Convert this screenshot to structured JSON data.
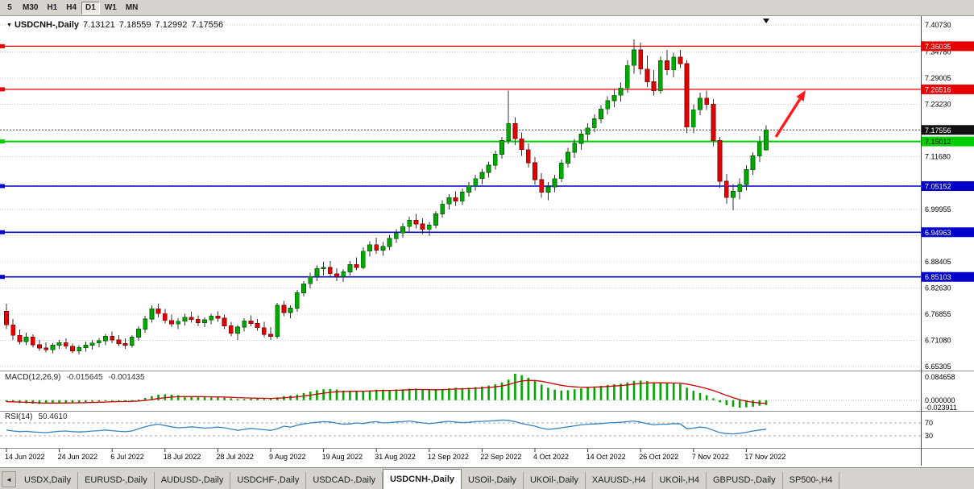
{
  "toolbar": {
    "periods": [
      "5",
      "M30",
      "H1",
      "H4",
      "D1",
      "W1",
      "MN"
    ],
    "active_period": "D1"
  },
  "tabbar": {
    "scroll_icon": "◄",
    "active_tab": "USDCNH-,Daily",
    "tabs": [
      "USDX,Daily",
      "EURUSD-,Daily",
      "AUDUSD-,Daily",
      "USDCHF-,Daily",
      "USDCAD-,Daily",
      "USDCNH-,Daily",
      "USOil-,Daily",
      "UKOil-,Daily",
      "XAUUSD-,H4",
      "UKOil-,H4",
      "GBPUSD-,Daily",
      "SP500-,H4"
    ]
  },
  "chart_data": [
    {
      "type": "candlestick",
      "symbol": "USDCNH-,Daily",
      "marker_icon": "▼",
      "ohlc": {
        "open": "7.13121",
        "high": "7.18559",
        "low": "7.12992",
        "close": "7.17556"
      },
      "ylim": [
        6.65305,
        7.4073
      ],
      "up_color": "#00A800",
      "down_color": "#E30000",
      "wick_color": "#333333",
      "grid_values": [
        7.4073,
        7.3478,
        7.29005,
        7.2323,
        7.17455,
        7.1168,
        7.05905,
        6.99955,
        6.9418,
        6.88405,
        6.8263,
        6.76855,
        6.7108,
        6.65305
      ],
      "tick_labels": [
        {
          "v": 7.4073,
          "t": "7.40730"
        },
        {
          "v": 7.3478,
          "t": "7.34780"
        },
        {
          "v": 7.29005,
          "t": "7.29005"
        },
        {
          "v": 7.2323,
          "t": "7.23230"
        },
        {
          "v": 7.1168,
          "t": "7.11680"
        },
        {
          "v": 6.99955,
          "t": "6.99955"
        },
        {
          "v": 6.88405,
          "t": "6.88405"
        },
        {
          "v": 6.8263,
          "t": "6.82630"
        },
        {
          "v": 6.76855,
          "t": "6.76855"
        },
        {
          "v": 6.7108,
          "t": "6.71080"
        },
        {
          "v": 6.65305,
          "t": "6.65305"
        }
      ],
      "hlines": [
        {
          "v": 7.36035,
          "t": "7.36035",
          "c": "#E60000",
          "w": 1.2,
          "txt": "#ffffff"
        },
        {
          "v": 7.26516,
          "t": "7.26516",
          "c": "#E60000",
          "w": 1.2,
          "txt": "#ffffff"
        },
        {
          "v": 7.15012,
          "t": "7.15012",
          "c": "#00CE00",
          "w": 2,
          "txt": "#000000"
        },
        {
          "v": 7.05152,
          "t": "7.05152",
          "c": "#0000C8",
          "w": 1.6,
          "txt": "#ffffff"
        },
        {
          "v": 6.94963,
          "t": "6.94963",
          "c": "#0000C8",
          "w": 1.6,
          "txt": "#ffffff"
        },
        {
          "v": 6.85103,
          "t": "6.85103",
          "c": "#0000C8",
          "w": 1.6,
          "txt": "#ffffff"
        }
      ],
      "current_price": {
        "v": 7.17556,
        "t": "7.17556",
        "bg": "#111111",
        "txt": "#ffffff"
      },
      "arrow": {
        "x1": 963,
        "y1": 170,
        "x2": 1000,
        "y2": 112,
        "color": "#FF1A1A"
      },
      "x_labels": [
        {
          "i": 0,
          "t": "14 Jun 2022"
        },
        {
          "i": 8,
          "t": "24 Jun 2022"
        },
        {
          "i": 16,
          "t": "6 Jul 2022"
        },
        {
          "i": 24,
          "t": "18 Jul 2022"
        },
        {
          "i": 32,
          "t": "28 Jul 2022"
        },
        {
          "i": 40,
          "t": "9 Aug 2022"
        },
        {
          "i": 48,
          "t": "19 Aug 2022"
        },
        {
          "i": 56,
          "t": "31 Aug 2022"
        },
        {
          "i": 64,
          "t": "12 Sep 2022"
        },
        {
          "i": 72,
          "t": "22 Sep 2022"
        },
        {
          "i": 80,
          "t": "4 Oct 2022"
        },
        {
          "i": 88,
          "t": "14 Oct 2022"
        },
        {
          "i": 96,
          "t": "26 Oct 2022"
        },
        {
          "i": 104,
          "t": "7 Nov 2022"
        },
        {
          "i": 112,
          "t": "17 Nov 2022"
        }
      ],
      "candles": [
        [
          6.775,
          6.792,
          6.736,
          6.745
        ],
        [
          6.745,
          6.758,
          6.712,
          6.722
        ],
        [
          6.722,
          6.735,
          6.702,
          6.708
        ],
        [
          6.708,
          6.728,
          6.7,
          6.718
        ],
        [
          6.718,
          6.724,
          6.695,
          6.701
        ],
        [
          6.701,
          6.712,
          6.688,
          6.694
        ],
        [
          6.694,
          6.706,
          6.684,
          6.69
        ],
        [
          6.69,
          6.705,
          6.682,
          6.7
        ],
        [
          6.7,
          6.712,
          6.692,
          6.706
        ],
        [
          6.706,
          6.715,
          6.692,
          6.698
        ],
        [
          6.698,
          6.704,
          6.682,
          6.688
        ],
        [
          6.688,
          6.7,
          6.68,
          6.695
        ],
        [
          6.695,
          6.708,
          6.686,
          6.7
        ],
        [
          6.7,
          6.712,
          6.69,
          6.705
        ],
        [
          6.705,
          6.716,
          6.696,
          6.71
        ],
        [
          6.71,
          6.725,
          6.7,
          6.72
        ],
        [
          6.72,
          6.73,
          6.705,
          6.712
        ],
        [
          6.712,
          6.722,
          6.698,
          6.704
        ],
        [
          6.704,
          6.715,
          6.692,
          6.7
        ],
        [
          6.7,
          6.722,
          6.695,
          6.718
        ],
        [
          6.718,
          6.742,
          6.71,
          6.736
        ],
        [
          6.736,
          6.765,
          6.728,
          6.758
        ],
        [
          6.758,
          6.788,
          6.75,
          6.78
        ],
        [
          6.78,
          6.792,
          6.762,
          6.77
        ],
        [
          6.77,
          6.78,
          6.748,
          6.755
        ],
        [
          6.755,
          6.768,
          6.74,
          6.747
        ],
        [
          6.747,
          6.76,
          6.736,
          6.753
        ],
        [
          6.753,
          6.77,
          6.744,
          6.762
        ],
        [
          6.762,
          6.774,
          6.75,
          6.757
        ],
        [
          6.757,
          6.766,
          6.742,
          6.75
        ],
        [
          6.75,
          6.762,
          6.74,
          6.756
        ],
        [
          6.756,
          6.77,
          6.746,
          6.764
        ],
        [
          6.764,
          6.775,
          6.752,
          6.76
        ],
        [
          6.76,
          6.768,
          6.736,
          6.743
        ],
        [
          6.743,
          6.752,
          6.72,
          6.727
        ],
        [
          6.727,
          6.745,
          6.712,
          6.74
        ],
        [
          6.74,
          6.76,
          6.73,
          6.754
        ],
        [
          6.754,
          6.766,
          6.742,
          6.748
        ],
        [
          6.748,
          6.758,
          6.732,
          6.739
        ],
        [
          6.739,
          6.752,
          6.718,
          6.724
        ],
        [
          6.724,
          6.74,
          6.712,
          6.72
        ],
        [
          6.72,
          6.794,
          6.714,
          6.788
        ],
        [
          6.788,
          6.798,
          6.764,
          6.772
        ],
        [
          6.772,
          6.788,
          6.76,
          6.782
        ],
        [
          6.782,
          6.822,
          6.774,
          6.816
        ],
        [
          6.816,
          6.842,
          6.808,
          6.836
        ],
        [
          6.836,
          6.86,
          6.826,
          6.852
        ],
        [
          6.852,
          6.876,
          6.842,
          6.869
        ],
        [
          6.869,
          6.884,
          6.854,
          6.872
        ],
        [
          6.872,
          6.886,
          6.85,
          6.858
        ],
        [
          6.858,
          6.87,
          6.842,
          6.852
        ],
        [
          6.852,
          6.868,
          6.84,
          6.862
        ],
        [
          6.862,
          6.886,
          6.854,
          6.878
        ],
        [
          6.878,
          6.894,
          6.866,
          6.872
        ],
        [
          6.872,
          6.916,
          6.868,
          6.908
        ],
        [
          6.908,
          6.93,
          6.896,
          6.922
        ],
        [
          6.922,
          6.938,
          6.902,
          6.91
        ],
        [
          6.91,
          6.928,
          6.898,
          6.918
        ],
        [
          6.918,
          6.944,
          6.91,
          6.936
        ],
        [
          6.936,
          6.956,
          6.926,
          6.948
        ],
        [
          6.948,
          6.97,
          6.938,
          6.962
        ],
        [
          6.962,
          6.984,
          6.95,
          6.976
        ],
        [
          6.976,
          6.99,
          6.958,
          6.968
        ],
        [
          6.968,
          6.98,
          6.946,
          6.956
        ],
        [
          6.956,
          6.972,
          6.942,
          6.965
        ],
        [
          6.965,
          6.996,
          6.958,
          6.99
        ],
        [
          6.99,
          7.02,
          6.982,
          7.012
        ],
        [
          7.012,
          7.034,
          7.0,
          7.026
        ],
        [
          7.026,
          7.04,
          7.008,
          7.018
        ],
        [
          7.018,
          7.046,
          7.01,
          7.038
        ],
        [
          7.038,
          7.06,
          7.028,
          7.052
        ],
        [
          7.052,
          7.076,
          7.042,
          7.068
        ],
        [
          7.068,
          7.09,
          7.056,
          7.082
        ],
        [
          7.082,
          7.106,
          7.07,
          7.098
        ],
        [
          7.098,
          7.13,
          7.088,
          7.122
        ],
        [
          7.122,
          7.16,
          7.112,
          7.152
        ],
        [
          7.152,
          7.262,
          7.144,
          7.19
        ],
        [
          7.19,
          7.204,
          7.142,
          7.156
        ],
        [
          7.156,
          7.17,
          7.118,
          7.132
        ],
        [
          7.132,
          7.146,
          7.092,
          7.103
        ],
        [
          7.103,
          7.116,
          7.055,
          7.066
        ],
        [
          7.066,
          7.08,
          7.026,
          7.038
        ],
        [
          7.038,
          7.06,
          7.02,
          7.05
        ],
        [
          7.05,
          7.076,
          7.038,
          7.068
        ],
        [
          7.068,
          7.11,
          7.06,
          7.102
        ],
        [
          7.102,
          7.136,
          7.092,
          7.126
        ],
        [
          7.126,
          7.156,
          7.114,
          7.146
        ],
        [
          7.146,
          7.176,
          7.132,
          7.166
        ],
        [
          7.166,
          7.19,
          7.15,
          7.18
        ],
        [
          7.18,
          7.21,
          7.17,
          7.2
        ],
        [
          7.2,
          7.23,
          7.19,
          7.222
        ],
        [
          7.222,
          7.25,
          7.21,
          7.24
        ],
        [
          7.24,
          7.266,
          7.226,
          7.252
        ],
        [
          7.252,
          7.28,
          7.238,
          7.268
        ],
        [
          7.268,
          7.33,
          7.258,
          7.318
        ],
        [
          7.318,
          7.375,
          7.3,
          7.352
        ],
        [
          7.352,
          7.368,
          7.298,
          7.31
        ],
        [
          7.31,
          7.34,
          7.27,
          7.282
        ],
        [
          7.282,
          7.308,
          7.252,
          7.262
        ],
        [
          7.262,
          7.338,
          7.255,
          7.328
        ],
        [
          7.328,
          7.352,
          7.296,
          7.308
        ],
        [
          7.308,
          7.346,
          7.292,
          7.336
        ],
        [
          7.336,
          7.352,
          7.312,
          7.322
        ],
        [
          7.322,
          7.33,
          7.168,
          7.182
        ],
        [
          7.182,
          7.232,
          7.168,
          7.22
        ],
        [
          7.22,
          7.258,
          7.208,
          7.246
        ],
        [
          7.246,
          7.262,
          7.22,
          7.232
        ],
        [
          7.232,
          7.244,
          7.14,
          7.152
        ],
        [
          7.152,
          7.16,
          7.048,
          7.062
        ],
        [
          7.062,
          7.078,
          7.012,
          7.026
        ],
        [
          7.026,
          7.056,
          6.998,
          7.04
        ],
        [
          7.04,
          7.068,
          7.022,
          7.055
        ],
        [
          7.055,
          7.098,
          7.042,
          7.088
        ],
        [
          7.088,
          7.126,
          7.076,
          7.118
        ],
        [
          7.118,
          7.162,
          7.105,
          7.148
        ],
        [
          7.13121,
          7.18559,
          7.12992,
          7.17556
        ]
      ]
    },
    {
      "type": "bar",
      "name": "MACD(12,26,9)",
      "value1": "-0.015645",
      "value2": "-0.001435",
      "bar_color": "#00A800",
      "signal_color": "#CC0000",
      "signal_period": 9,
      "ylim": [
        -0.0239,
        0.0847
      ],
      "ticks": [
        {
          "v": 0.084658,
          "t": "0.084658"
        },
        {
          "v": 0.0,
          "t": "0.000000"
        },
        {
          "v": -0.023911,
          "t": "-0.023911"
        }
      ],
      "values": [
        -0.005,
        -0.007,
        -0.009,
        -0.01,
        -0.011,
        -0.012,
        -0.011,
        -0.01,
        -0.009,
        -0.008,
        -0.008,
        -0.007,
        -0.006,
        -0.005,
        -0.004,
        -0.003,
        -0.002,
        -0.002,
        -0.003,
        -0.002,
        0.002,
        0.007,
        0.013,
        0.018,
        0.019,
        0.018,
        0.016,
        0.013,
        0.012,
        0.011,
        0.01,
        0.009,
        0.009,
        0.008,
        0.006,
        0.004,
        0.004,
        0.005,
        0.005,
        0.004,
        0.004,
        0.009,
        0.013,
        0.015,
        0.018,
        0.023,
        0.028,
        0.032,
        0.035,
        0.036,
        0.034,
        0.031,
        0.03,
        0.03,
        0.03,
        0.032,
        0.034,
        0.034,
        0.033,
        0.034,
        0.035,
        0.037,
        0.037,
        0.035,
        0.032,
        0.032,
        0.035,
        0.038,
        0.04,
        0.039,
        0.04,
        0.042,
        0.044,
        0.047,
        0.051,
        0.057,
        0.066,
        0.0847,
        0.08,
        0.072,
        0.062,
        0.05,
        0.04,
        0.034,
        0.031,
        0.032,
        0.035,
        0.038,
        0.041,
        0.044,
        0.046,
        0.049,
        0.051,
        0.053,
        0.057,
        0.062,
        0.063,
        0.061,
        0.057,
        0.056,
        0.055,
        0.054,
        0.052,
        0.04,
        0.03,
        0.023,
        0.016,
        0.006,
        -0.007,
        -0.016,
        -0.021,
        -0.0239,
        -0.023,
        -0.021,
        -0.018,
        -0.015645
      ]
    },
    {
      "type": "line",
      "name": "RSI(14)",
      "value": "50.4610",
      "line_color": "#3585C2",
      "ylim": [
        0,
        100
      ],
      "levels": [
        {
          "v": 70,
          "t": "70"
        },
        {
          "v": 30,
          "t": "30"
        }
      ],
      "values": [
        48,
        45,
        43,
        44,
        42,
        41,
        40,
        42,
        44,
        45,
        43,
        42,
        43,
        45,
        46,
        48,
        46,
        44,
        43,
        45,
        52,
        58,
        63,
        66,
        62,
        58,
        55,
        56,
        58,
        56,
        54,
        55,
        57,
        55,
        51,
        47,
        50,
        53,
        51,
        49,
        47,
        52,
        60,
        57,
        63,
        67,
        70,
        72,
        74,
        73,
        69,
        66,
        67,
        70,
        68,
        72,
        74,
        70,
        71,
        73,
        74,
        76,
        73,
        70,
        68,
        70,
        73,
        75,
        73,
        71,
        72,
        74,
        75,
        76,
        77,
        79,
        78,
        74,
        68,
        64,
        60,
        54,
        50,
        52,
        55,
        58,
        61,
        64,
        66,
        67,
        68,
        70,
        71,
        72,
        74,
        76,
        72,
        68,
        64,
        66,
        66,
        68,
        67,
        52,
        54,
        57,
        55,
        47,
        40,
        37,
        36,
        38,
        41,
        45,
        48,
        50.46
      ]
    }
  ]
}
